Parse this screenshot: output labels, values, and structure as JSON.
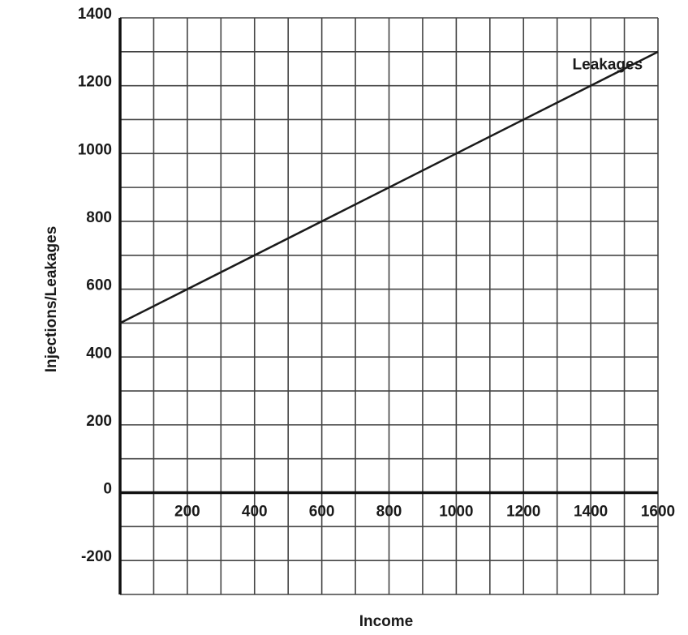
{
  "chart_data": {
    "type": "line",
    "title": "",
    "xlabel": "Income",
    "ylabel": "Injections/Leakages",
    "xlim": [
      0,
      1600
    ],
    "ylim": [
      -300,
      1400
    ],
    "x_ticks": [
      200,
      400,
      600,
      800,
      1000,
      1200,
      1400,
      1600
    ],
    "x_tick_labels": [
      "200",
      "400",
      "600",
      "800",
      "1000",
      "1200",
      "1400",
      "1600"
    ],
    "y_ticks": [
      -200,
      0,
      200,
      400,
      600,
      800,
      1000,
      1200,
      1400
    ],
    "y_tick_labels": [
      "-200",
      "0",
      "200",
      "400",
      "600",
      "800",
      "1000",
      "1200",
      "1400"
    ],
    "grid": true,
    "grid_step_x": 100,
    "grid_step_y": 100,
    "series": [
      {
        "name": "Leakages",
        "x": [
          0,
          1600
        ],
        "y": [
          500,
          1300
        ]
      }
    ],
    "annotations": [
      {
        "text": "Leakages",
        "x": 1450,
        "y": 1260
      }
    ]
  },
  "colors": {
    "line": "#1a1a1a",
    "grid": "#444444",
    "axis": "#111111"
  }
}
